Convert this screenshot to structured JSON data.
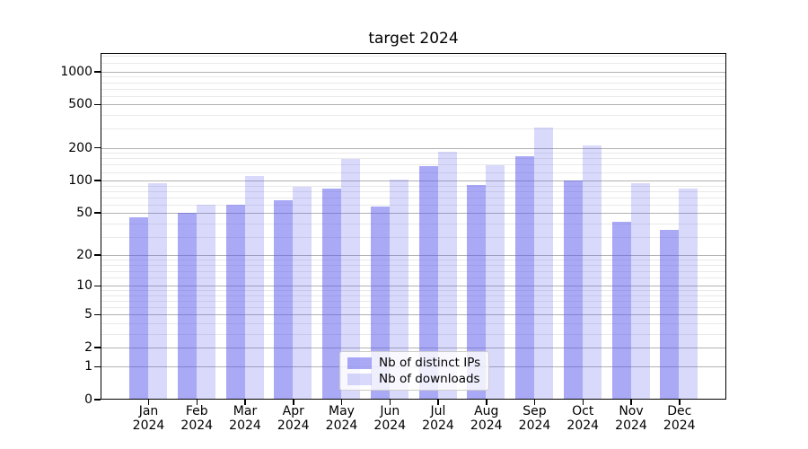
{
  "chart_data": {
    "type": "bar",
    "title": "target 2024",
    "categories": [
      "Jan 2024",
      "Feb 2024",
      "Mar 2024",
      "Apr 2024",
      "May 2024",
      "Jun 2024",
      "Jul 2024",
      "Aug 2024",
      "Sep 2024",
      "Oct 2024",
      "Nov 2024",
      "Dec 2024"
    ],
    "series": [
      {
        "name": "Nb of distinct IPs",
        "values": [
          46,
          50,
          60,
          66,
          84,
          57,
          135,
          91,
          166,
          101,
          41,
          35
        ]
      },
      {
        "name": "Nb of downloads",
        "values": [
          95,
          60,
          110,
          88,
          157,
          103,
          186,
          139,
          305,
          212,
          94,
          85
        ]
      }
    ],
    "yscale": "log1p",
    "yticks": [
      1000,
      500,
      200,
      100,
      50,
      20,
      10,
      5,
      2,
      1,
      0
    ],
    "minor_ticks": [
      3,
      4,
      6,
      7,
      8,
      9,
      12,
      14,
      16,
      18,
      30,
      40,
      60,
      70,
      80,
      90,
      120,
      140,
      160,
      180,
      300,
      400,
      600,
      700,
      800,
      900,
      1200,
      1400
    ],
    "ylim": [
      0,
      1470
    ],
    "xlabel": "",
    "ylabel": "",
    "grid": "horizontal major+minor",
    "legend_position": "lower center"
  },
  "colors": {
    "bar_ips": "rgba(84,84,238,0.5)",
    "bar_downloads": "rgba(84,84,238,0.22)",
    "grid_major": "#b2b2b2",
    "grid_minor": "#e9e9e9",
    "spine": "#000000",
    "tick_text": "#000000",
    "legend_border": "#cccccc",
    "legend_bg": "rgba(255,255,255,0.8)"
  }
}
